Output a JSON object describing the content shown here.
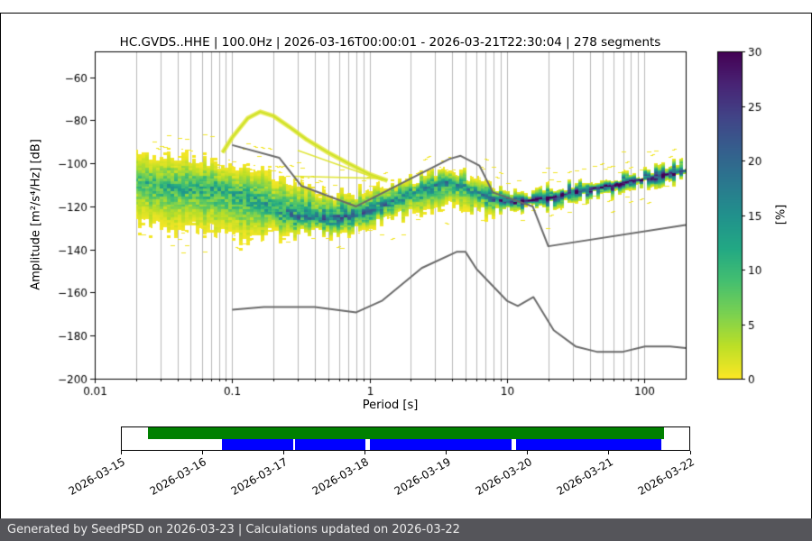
{
  "page": {
    "footer_text": "Generated by SeedPSD on 2026-03-23 | Calculations updated on 2026-03-22"
  },
  "chart_data": {
    "type": "heatmap",
    "title": "HC.GVDS..HHE | 100.0Hz | 2026-03-16T00:00:01 - 2026-03-21T22:30:04 | 278 segments",
    "station": "HC.GVDS..HHE",
    "sampling_rate": "100.0Hz",
    "segments_count": "278 segments",
    "xlabel": "Period [s]",
    "ylabel": "Amplitude [m²/s⁴/Hz] [dB]",
    "x_scale": "log",
    "xlim": [
      0.01,
      200
    ],
    "ylim": [
      -200,
      -48
    ],
    "x_ticks": [
      0.01,
      0.1,
      1,
      10,
      100
    ],
    "x_tick_labels": [
      "0.01",
      "0.1",
      "1",
      "10",
      "100"
    ],
    "y_ticks": [
      -200,
      -180,
      -160,
      -140,
      -120,
      -100,
      -80,
      -60
    ],
    "y_tick_labels": [
      "−200",
      "−180",
      "−160",
      "−140",
      "−120",
      "−100",
      "−80",
      "−60"
    ],
    "grid": "vertical-log",
    "grid_color": "#b8b8b8",
    "colorbar": {
      "label": "[%]",
      "min": 0,
      "max": 30,
      "ticks": [
        0,
        5,
        10,
        15,
        20,
        25,
        30
      ],
      "colors": [
        "#fde725",
        "#bddf26",
        "#7ad151",
        "#44bf70",
        "#22a884",
        "#21918c",
        "#2a788e",
        "#355f8d",
        "#414487",
        "#482475",
        "#440154"
      ]
    },
    "ppsd_band": {
      "description": "PPSD probability band: for each period, bottom/mode/top amplitude (dB) and peak probability (%)",
      "periods": [
        0.02,
        0.03,
        0.05,
        0.08,
        0.12,
        0.2,
        0.3,
        0.5,
        0.8,
        1.2,
        2,
        3.5,
        5,
        7,
        10,
        15,
        20,
        30,
        50,
        80,
        120,
        200
      ],
      "top": [
        -92,
        -94,
        -96,
        -98,
        -100,
        -104,
        -108,
        -112,
        -112,
        -110,
        -106,
        -101,
        -104,
        -109,
        -112,
        -112,
        -111,
        -109,
        -107,
        -104,
        -102,
        -99
      ],
      "mode": [
        -108,
        -110,
        -111,
        -112,
        -115,
        -121,
        -125,
        -126,
        -124,
        -120,
        -114,
        -108,
        -111,
        -115,
        -118,
        -117,
        -116,
        -113,
        -111,
        -108,
        -106,
        -103
      ],
      "bottom": [
        -130,
        -133,
        -134,
        -135,
        -138,
        -134,
        -134,
        -133,
        -131,
        -128,
        -124,
        -121,
        -123,
        -124,
        -123,
        -121,
        -120,
        -117,
        -115,
        -112,
        -110,
        -107
      ],
      "peak_pct": [
        9,
        11,
        12,
        12,
        12,
        14,
        16,
        18,
        18,
        17,
        15,
        15,
        14,
        16,
        24,
        28,
        30,
        30,
        30,
        30,
        30,
        30
      ]
    },
    "secondary_branches": {
      "arc": [
        [
          0.085,
          -95
        ],
        [
          0.1,
          -88
        ],
        [
          0.13,
          -79
        ],
        [
          0.16,
          -76
        ],
        [
          0.2,
          -78
        ],
        [
          0.26,
          -83
        ],
        [
          0.35,
          -89
        ],
        [
          0.5,
          -95
        ],
        [
          0.7,
          -100
        ],
        [
          1.0,
          -105
        ],
        [
          1.35,
          -108
        ]
      ],
      "lines": [
        [
          [
            0.3,
            -94
          ],
          [
            1.25,
            -108
          ]
        ],
        [
          [
            0.28,
            -106
          ],
          [
            1.2,
            -107
          ]
        ]
      ]
    },
    "noise_models": {
      "color": "#6a6a6a",
      "nhnm": [
        [
          0.1,
          -91.5
        ],
        [
          0.22,
          -97.4
        ],
        [
          0.32,
          -110.5
        ],
        [
          0.8,
          -120.0
        ],
        [
          3.8,
          -98.0
        ],
        [
          4.6,
          -96.5
        ],
        [
          6.3,
          -101.0
        ],
        [
          7.9,
          -113.5
        ],
        [
          15.4,
          -120.0
        ],
        [
          20.0,
          -138.5
        ],
        [
          200.0,
          -128.6
        ]
      ],
      "nlnm": [
        [
          0.1,
          -168.0
        ],
        [
          0.17,
          -166.7
        ],
        [
          0.4,
          -166.7
        ],
        [
          0.8,
          -169.2
        ],
        [
          1.24,
          -163.7
        ],
        [
          2.4,
          -148.6
        ],
        [
          4.3,
          -141.1
        ],
        [
          5.0,
          -141.1
        ],
        [
          6.0,
          -149.0
        ],
        [
          10.0,
          -163.8
        ],
        [
          12.0,
          -166.2
        ],
        [
          15.6,
          -162.1
        ],
        [
          21.9,
          -177.5
        ],
        [
          31.6,
          -185.0
        ],
        [
          45.0,
          -187.5
        ],
        [
          70.0,
          -187.5
        ],
        [
          101.0,
          -185.0
        ],
        [
          154.0,
          -185.0
        ],
        [
          200.0,
          -185.8
        ]
      ]
    }
  },
  "timeline": {
    "dates": [
      "2026-03-15",
      "2026-03-16",
      "2026-03-17",
      "2026-03-18",
      "2026-03-19",
      "2026-03-20",
      "2026-03-21",
      "2026-03-22"
    ],
    "bar_colors": {
      "top_row": "#008000",
      "bottom_row": "#0000ff"
    },
    "coverage": [
      {
        "kind": "span",
        "row": "top",
        "color": "#008000",
        "start": 0.046,
        "end": 0.955
      },
      {
        "kind": "data",
        "row": "bottom",
        "color": "#0000ff",
        "start": 0.176,
        "end": 0.302
      },
      {
        "kind": "data",
        "row": "bottom",
        "color": "#0000ff",
        "start": 0.306,
        "end": 0.43
      },
      {
        "kind": "data",
        "row": "bottom",
        "color": "#0000ff",
        "start": 0.437,
        "end": 0.687
      },
      {
        "kind": "data",
        "row": "bottom",
        "color": "#0000ff",
        "start": 0.695,
        "end": 0.95
      }
    ]
  }
}
